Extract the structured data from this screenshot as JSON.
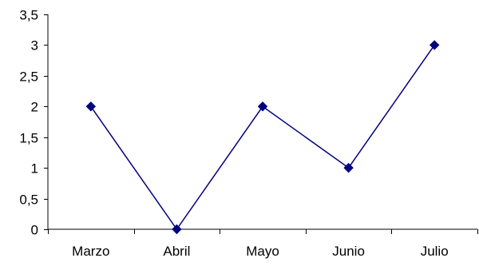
{
  "chart_data": {
    "type": "line",
    "title": "",
    "xlabel": "",
    "ylabel": "",
    "categories": [
      "Marzo",
      "Abril",
      "Mayo",
      "Junio",
      "Julio"
    ],
    "series": [
      {
        "values": [
          2,
          0,
          2,
          1,
          3
        ]
      }
    ],
    "ylim": [
      0,
      3.5
    ],
    "yticks": [
      0,
      0.5,
      1,
      1.5,
      2,
      2.5,
      3,
      3.5
    ],
    "ytick_labels": [
      "0",
      "0,5",
      "1",
      "1,5",
      "2",
      "2,5",
      "3",
      "3,5"
    ],
    "grid": false,
    "legend": "none",
    "line_color": "#000080",
    "marker": "diamond"
  }
}
